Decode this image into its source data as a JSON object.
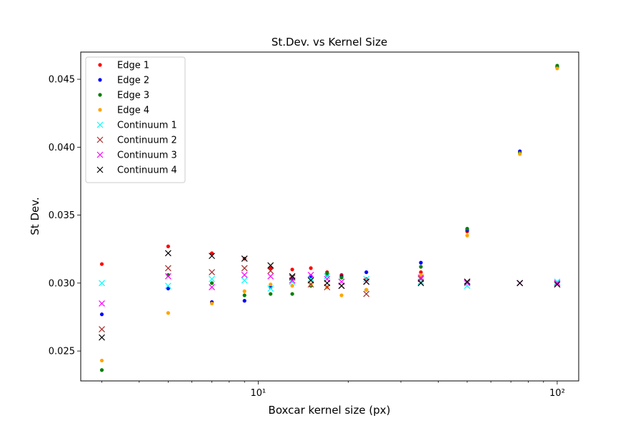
{
  "chart_data": {
    "type": "scatter",
    "title": "St.Dev. vs Kernel Size",
    "xlabel": "Boxcar kernel size (px)",
    "ylabel": "St Dev.",
    "xscale": "log",
    "xlim": [
      2.55,
      118
    ],
    "ylim": [
      0.0228,
      0.047
    ],
    "x_tick_values": [
      10,
      100
    ],
    "x_tick_labels": [
      "10¹",
      "10²"
    ],
    "y_tick_values": [
      0.025,
      0.03,
      0.035,
      0.04,
      0.045
    ],
    "y_tick_labels": [
      "0.025",
      "0.030",
      "0.035",
      "0.040",
      "0.045"
    ],
    "grid": false,
    "legend_position": "top-left",
    "x": [
      3,
      5,
      7,
      9,
      11,
      13,
      15,
      17,
      19,
      23,
      35,
      50,
      75,
      100
    ],
    "series": [
      {
        "name": "Edge 1",
        "marker": "dot",
        "color": "#ff0000",
        "values": [
          0.0314,
          0.0327,
          0.0322,
          0.0318,
          0.0311,
          0.031,
          0.0311,
          0.0308,
          0.0306,
          0.0303,
          0.0308,
          0.0338,
          0.0396,
          0.0459
        ]
      },
      {
        "name": "Edge 2",
        "marker": "dot",
        "color": "#0000ff",
        "values": [
          0.0277,
          0.0296,
          0.0286,
          0.0287,
          0.0297,
          0.0303,
          0.0305,
          0.0306,
          0.0305,
          0.0308,
          0.0315,
          0.0339,
          0.0397,
          0.0459
        ]
      },
      {
        "name": "Edge 3",
        "marker": "dot",
        "color": "#008000",
        "values": [
          0.0236,
          0.0306,
          0.03,
          0.0291,
          0.0292,
          0.0292,
          0.0298,
          0.0307,
          0.0304,
          0.0295,
          0.0312,
          0.034,
          0.0396,
          0.046
        ]
      },
      {
        "name": "Edge 4",
        "marker": "dot",
        "color": "#ffa500",
        "values": [
          0.0243,
          0.0278,
          0.0285,
          0.0294,
          0.0299,
          0.0298,
          0.0299,
          0.0297,
          0.0291,
          0.0295,
          0.0306,
          0.0335,
          0.0395,
          0.0458
        ]
      },
      {
        "name": "Continuum 1",
        "marker": "x",
        "color": "#00ffff",
        "values": [
          0.03,
          0.0298,
          0.0303,
          0.0302,
          0.0296,
          0.0301,
          0.0303,
          0.0305,
          0.0301,
          0.0303,
          0.0301,
          0.0298,
          0.03,
          0.0301
        ]
      },
      {
        "name": "Continuum 2",
        "marker": "x",
        "color": "#a52a2a",
        "values": [
          0.0266,
          0.0311,
          0.0308,
          0.0311,
          0.0309,
          0.0304,
          0.0299,
          0.0297,
          0.0298,
          0.0292,
          0.0303,
          0.0301,
          0.03,
          0.0299
        ]
      },
      {
        "name": "Continuum 3",
        "marker": "x",
        "color": "#ff00ff",
        "values": [
          0.0285,
          0.0305,
          0.0297,
          0.0306,
          0.0305,
          0.0302,
          0.0306,
          0.0303,
          0.0301,
          0.0301,
          0.0304,
          0.03,
          0.03,
          0.03
        ]
      },
      {
        "name": "Continuum 4",
        "marker": "x",
        "color": "#000000",
        "values": [
          0.026,
          0.0322,
          0.032,
          0.0318,
          0.0313,
          0.0305,
          0.0302,
          0.03,
          0.0298,
          0.0301,
          0.03,
          0.0301,
          0.03,
          0.0299
        ]
      }
    ]
  }
}
